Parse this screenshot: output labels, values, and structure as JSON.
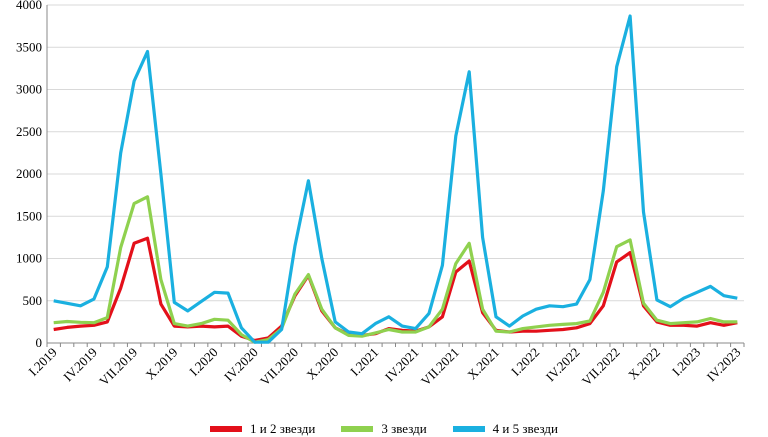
{
  "chart_data": {
    "type": "line",
    "title": "",
    "xlabel": "",
    "ylabel": "",
    "ylim": [
      0,
      4000
    ],
    "yticks": [
      0,
      500,
      1000,
      1500,
      2000,
      2500,
      3000,
      3500,
      4000
    ],
    "grid": true,
    "legend_placement": "bottom",
    "x": [
      "I.2019",
      "II.2019",
      "III.2019",
      "IV.2019",
      "V.2019",
      "VI.2019",
      "VII.2019",
      "VIII.2019",
      "IX.2019",
      "X.2019",
      "XI.2019",
      "XII.2019",
      "I.2020",
      "II.2020",
      "III.2020",
      "IV.2020",
      "V.2020",
      "VI.2020",
      "VII.2020",
      "VIII.2020",
      "IX.2020",
      "X.2020",
      "XI.2020",
      "XII.2020",
      "I.2021",
      "II.2021",
      "III.2021",
      "IV.2021",
      "V.2021",
      "VI.2021",
      "VII.2021",
      "VIII.2021",
      "IX.2021",
      "X.2021",
      "XI.2021",
      "XII.2021",
      "I.2022",
      "II.2022",
      "III.2022",
      "IV.2022",
      "V.2022",
      "VI.2022",
      "VII.2022",
      "VIII.2022",
      "IX.2022",
      "X.2022",
      "XI.2022",
      "XII.2022",
      "I.2023",
      "II.2023",
      "III.2023",
      "IV.2023"
    ],
    "xtick_labels": [
      "I.2019",
      "IV.2019",
      "VII.2019",
      "X.2019",
      "I.2020",
      "IV.2020",
      "VII.2020",
      "X.2020",
      "I.2021",
      "IV.2021",
      "VII.2021",
      "X.2021",
      "I.2022",
      "IV.2022",
      "VII.2022",
      "X.2022",
      "I.2023",
      "IV.2023"
    ],
    "series": [
      {
        "name": "1 и 2 звезди",
        "color": "#e3101a",
        "values": [
          160,
          185,
          200,
          210,
          250,
          650,
          1180,
          1240,
          460,
          200,
          190,
          200,
          190,
          200,
          80,
          30,
          60,
          200,
          560,
          800,
          380,
          180,
          100,
          90,
          110,
          170,
          150,
          140,
          190,
          310,
          840,
          970,
          360,
          150,
          130,
          140,
          140,
          150,
          160,
          180,
          230,
          440,
          960,
          1070,
          440,
          250,
          210,
          210,
          200,
          240,
          210,
          240
        ]
      },
      {
        "name": "3 звезди",
        "color": "#8fd14f",
        "values": [
          240,
          255,
          245,
          240,
          300,
          1130,
          1650,
          1730,
          750,
          230,
          200,
          230,
          280,
          270,
          100,
          10,
          40,
          170,
          580,
          810,
          400,
          180,
          90,
          80,
          120,
          160,
          130,
          130,
          190,
          400,
          940,
          1180,
          400,
          140,
          130,
          170,
          190,
          210,
          220,
          230,
          260,
          600,
          1140,
          1220,
          470,
          270,
          230,
          240,
          250,
          290,
          250,
          250
        ]
      },
      {
        "name": "4 и 5 звезди",
        "color": "#1ab0e0",
        "values": [
          500,
          470,
          440,
          520,
          900,
          2250,
          3100,
          3450,
          2000,
          480,
          380,
          490,
          600,
          590,
          180,
          10,
          10,
          160,
          1150,
          1920,
          1000,
          250,
          130,
          110,
          230,
          310,
          200,
          170,
          350,
          920,
          2450,
          3210,
          1250,
          310,
          200,
          320,
          400,
          440,
          430,
          460,
          750,
          1800,
          3270,
          3870,
          1550,
          510,
          430,
          530,
          600,
          670,
          560,
          530
        ]
      }
    ]
  }
}
